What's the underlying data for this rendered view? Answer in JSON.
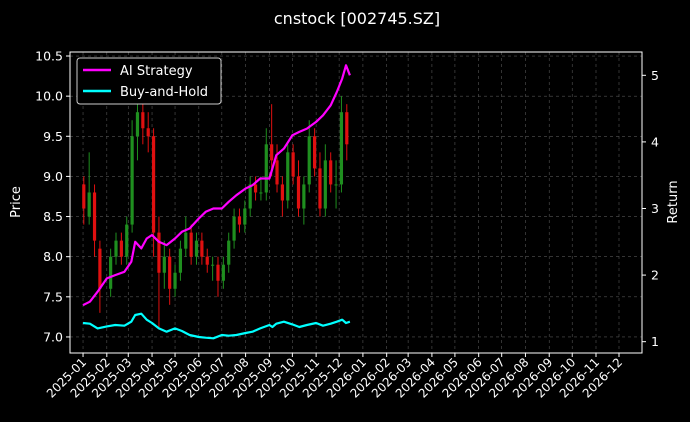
{
  "chart_data": {
    "type": "line",
    "title": "cnstock [002745.SZ]",
    "xlabel": "",
    "ylabel_left": "Price",
    "ylabel_right": "Return",
    "x_ticks": [
      "2025-01",
      "2025-02",
      "2025-03",
      "2025-04",
      "2025-05",
      "2025-06",
      "2025-07",
      "2025-08",
      "2025-09",
      "2025-10",
      "2025-11",
      "2025-12",
      "2026-01",
      "2026-02",
      "2026-03",
      "2026-04",
      "2026-05",
      "2026-06",
      "2026-07",
      "2026-08",
      "2026-09",
      "2026-10",
      "2026-11",
      "2026-12"
    ],
    "xlim": [
      "2024-12-15",
      "2026-12-31"
    ],
    "price_axis": {
      "ylim": [
        6.8,
        10.55
      ],
      "ticks": [
        7.0,
        7.5,
        8.0,
        8.5,
        9.0,
        9.5,
        10.0,
        10.5
      ]
    },
    "return_axis": {
      "ylim": [
        0.83,
        5.35
      ],
      "ticks": [
        1,
        2,
        3,
        4,
        5
      ]
    },
    "grid": true,
    "legend_position": "top-left",
    "colors": {
      "background": "#000000",
      "up_candle": "#1f8f1f",
      "down_candle": "#e01010",
      "ai_strategy": "#ff00ff",
      "buy_and_hold": "#00ffff",
      "grid": "#555555"
    },
    "series": [
      {
        "name": "AI Strategy",
        "axis": "return",
        "x": [
          "2025-01-01",
          "2025-01-10",
          "2025-01-20",
          "2025-02-01",
          "2025-02-12",
          "2025-02-24",
          "2025-03-05",
          "2025-03-10",
          "2025-03-18",
          "2025-03-25",
          "2025-04-01",
          "2025-04-10",
          "2025-04-20",
          "2025-05-01",
          "2025-05-10",
          "2025-05-20",
          "2025-06-01",
          "2025-06-10",
          "2025-06-20",
          "2025-07-01",
          "2025-07-10",
          "2025-07-20",
          "2025-08-01",
          "2025-08-10",
          "2025-08-20",
          "2025-09-01",
          "2025-09-05",
          "2025-09-10",
          "2025-09-20",
          "2025-10-01",
          "2025-10-10",
          "2025-10-20",
          "2025-11-01",
          "2025-11-10",
          "2025-11-20",
          "2025-11-28",
          "2025-12-05",
          "2025-12-10",
          "2025-12-15"
        ],
        "values": [
          1.55,
          1.6,
          1.75,
          1.95,
          2.0,
          2.05,
          2.2,
          2.5,
          2.4,
          2.55,
          2.6,
          2.5,
          2.45,
          2.55,
          2.65,
          2.7,
          2.85,
          2.95,
          3.0,
          3.0,
          3.1,
          3.2,
          3.3,
          3.35,
          3.45,
          3.45,
          3.6,
          3.8,
          3.9,
          4.1,
          4.15,
          4.2,
          4.3,
          4.4,
          4.55,
          4.75,
          4.95,
          5.15,
          5.0
        ]
      },
      {
        "name": "Buy-and-Hold",
        "axis": "return",
        "x": [
          "2025-01-01",
          "2025-01-10",
          "2025-01-20",
          "2025-02-01",
          "2025-02-12",
          "2025-02-24",
          "2025-03-05",
          "2025-03-10",
          "2025-03-18",
          "2025-03-25",
          "2025-04-01",
          "2025-04-10",
          "2025-04-20",
          "2025-05-01",
          "2025-05-10",
          "2025-05-20",
          "2025-06-01",
          "2025-06-10",
          "2025-06-20",
          "2025-07-01",
          "2025-07-10",
          "2025-07-20",
          "2025-08-01",
          "2025-08-10",
          "2025-08-20",
          "2025-09-01",
          "2025-09-05",
          "2025-09-10",
          "2025-09-20",
          "2025-10-01",
          "2025-10-10",
          "2025-10-20",
          "2025-11-01",
          "2025-11-10",
          "2025-11-20",
          "2025-11-28",
          "2025-12-05",
          "2025-12-10",
          "2025-12-15"
        ],
        "values": [
          1.28,
          1.27,
          1.2,
          1.23,
          1.25,
          1.24,
          1.3,
          1.4,
          1.42,
          1.33,
          1.28,
          1.2,
          1.15,
          1.2,
          1.16,
          1.1,
          1.07,
          1.06,
          1.05,
          1.1,
          1.09,
          1.1,
          1.13,
          1.15,
          1.2,
          1.25,
          1.22,
          1.27,
          1.3,
          1.26,
          1.22,
          1.25,
          1.28,
          1.24,
          1.27,
          1.3,
          1.33,
          1.28,
          1.3
        ]
      }
    ],
    "candlestick": {
      "name": "Price",
      "axis": "price",
      "x": [
        "2025-01-02",
        "2025-01-09",
        "2025-01-16",
        "2025-01-23",
        "2025-02-06",
        "2025-02-13",
        "2025-02-20",
        "2025-02-27",
        "2025-03-06",
        "2025-03-13",
        "2025-03-20",
        "2025-03-27",
        "2025-04-03",
        "2025-04-10",
        "2025-04-17",
        "2025-04-24",
        "2025-05-01",
        "2025-05-08",
        "2025-05-15",
        "2025-05-22",
        "2025-05-29",
        "2025-06-05",
        "2025-06-12",
        "2025-06-19",
        "2025-06-26",
        "2025-07-03",
        "2025-07-10",
        "2025-07-17",
        "2025-07-24",
        "2025-07-31",
        "2025-08-07",
        "2025-08-14",
        "2025-08-21",
        "2025-08-28",
        "2025-09-04",
        "2025-09-11",
        "2025-09-18",
        "2025-09-25",
        "2025-10-02",
        "2025-10-09",
        "2025-10-16",
        "2025-10-23",
        "2025-10-30",
        "2025-11-06",
        "2025-11-13",
        "2025-11-20",
        "2025-11-27",
        "2025-12-04",
        "2025-12-11"
      ],
      "open": [
        8.9,
        8.5,
        8.8,
        8.1,
        7.6,
        8.0,
        8.2,
        8.0,
        8.4,
        9.5,
        9.8,
        9.6,
        9.5,
        8.3,
        7.8,
        8.0,
        7.6,
        7.8,
        8.1,
        8.3,
        8.0,
        8.2,
        8.0,
        7.9,
        7.9,
        7.7,
        7.9,
        8.2,
        8.5,
        8.4,
        8.6,
        8.9,
        8.8,
        8.8,
        9.4,
        9.2,
        8.9,
        8.7,
        9.3,
        9.0,
        8.6,
        8.9,
        9.5,
        9.1,
        8.6,
        9.2,
        8.9,
        8.9,
        9.8
      ],
      "close": [
        8.6,
        8.8,
        8.2,
        7.6,
        8.0,
        8.2,
        8.0,
        8.4,
        9.5,
        9.8,
        9.6,
        9.5,
        8.3,
        7.8,
        8.0,
        7.6,
        7.8,
        8.1,
        8.3,
        8.0,
        8.2,
        8.0,
        7.9,
        7.9,
        7.7,
        7.9,
        8.2,
        8.5,
        8.4,
        8.6,
        8.9,
        8.8,
        8.8,
        9.4,
        9.2,
        8.9,
        8.7,
        9.3,
        9.0,
        8.6,
        8.9,
        9.5,
        9.1,
        8.6,
        9.2,
        8.9,
        8.9,
        9.8,
        9.4
      ],
      "high": [
        9.0,
        9.3,
        8.9,
        8.2,
        8.1,
        8.3,
        8.3,
        8.5,
        9.7,
        10.3,
        10.0,
        9.8,
        9.6,
        8.5,
        8.2,
        8.1,
        7.9,
        8.2,
        8.5,
        8.4,
        8.3,
        8.3,
        8.1,
        8.0,
        8.0,
        8.0,
        8.3,
        8.6,
        8.6,
        8.7,
        9.0,
        9.0,
        9.0,
        9.6,
        9.9,
        9.4,
        9.0,
        9.4,
        9.4,
        9.2,
        9.0,
        9.7,
        9.6,
        9.3,
        9.4,
        9.3,
        9.2,
        10.0,
        9.9
      ],
      "low": [
        8.4,
        8.4,
        8.0,
        7.3,
        7.5,
        7.9,
        7.9,
        7.9,
        8.3,
        9.2,
        9.4,
        9.3,
        8.0,
        7.1,
        7.6,
        7.4,
        7.5,
        7.7,
        8.0,
        7.9,
        7.9,
        7.9,
        7.8,
        7.7,
        7.5,
        7.6,
        7.8,
        8.1,
        8.3,
        8.3,
        8.5,
        8.7,
        8.7,
        8.7,
        9.0,
        8.8,
        8.5,
        8.6,
        8.9,
        8.5,
        8.4,
        8.8,
        9.0,
        8.5,
        8.5,
        8.8,
        8.6,
        8.8,
        9.2
      ]
    }
  }
}
